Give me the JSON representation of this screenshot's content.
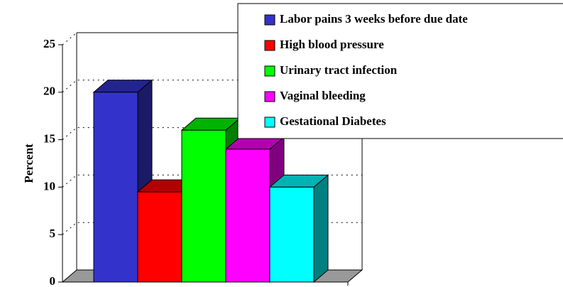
{
  "chart_data": {
    "type": "bar",
    "y_label": "Percent",
    "categories": [
      null
    ],
    "series": [
      {
        "name": "Labor pains 3 weeks before due date",
        "color": "#3333cc",
        "values": [
          20
        ]
      },
      {
        "name": "High blood pressure",
        "color": "#ff0000",
        "values": [
          9.5
        ]
      },
      {
        "name": "Urinary tract infection",
        "color": "#00ff00",
        "values": [
          16
        ]
      },
      {
        "name": "Vaginal bleeding",
        "color": "#ff00ff",
        "values": [
          14
        ]
      },
      {
        "name": "Gestational Diabetes",
        "color": "#00ffff",
        "values": [
          10
        ]
      }
    ],
    "ylim": [
      0,
      25
    ],
    "yticks": [
      0,
      5,
      10,
      15,
      20,
      25
    ],
    "grid": true,
    "legend": "top-right"
  }
}
